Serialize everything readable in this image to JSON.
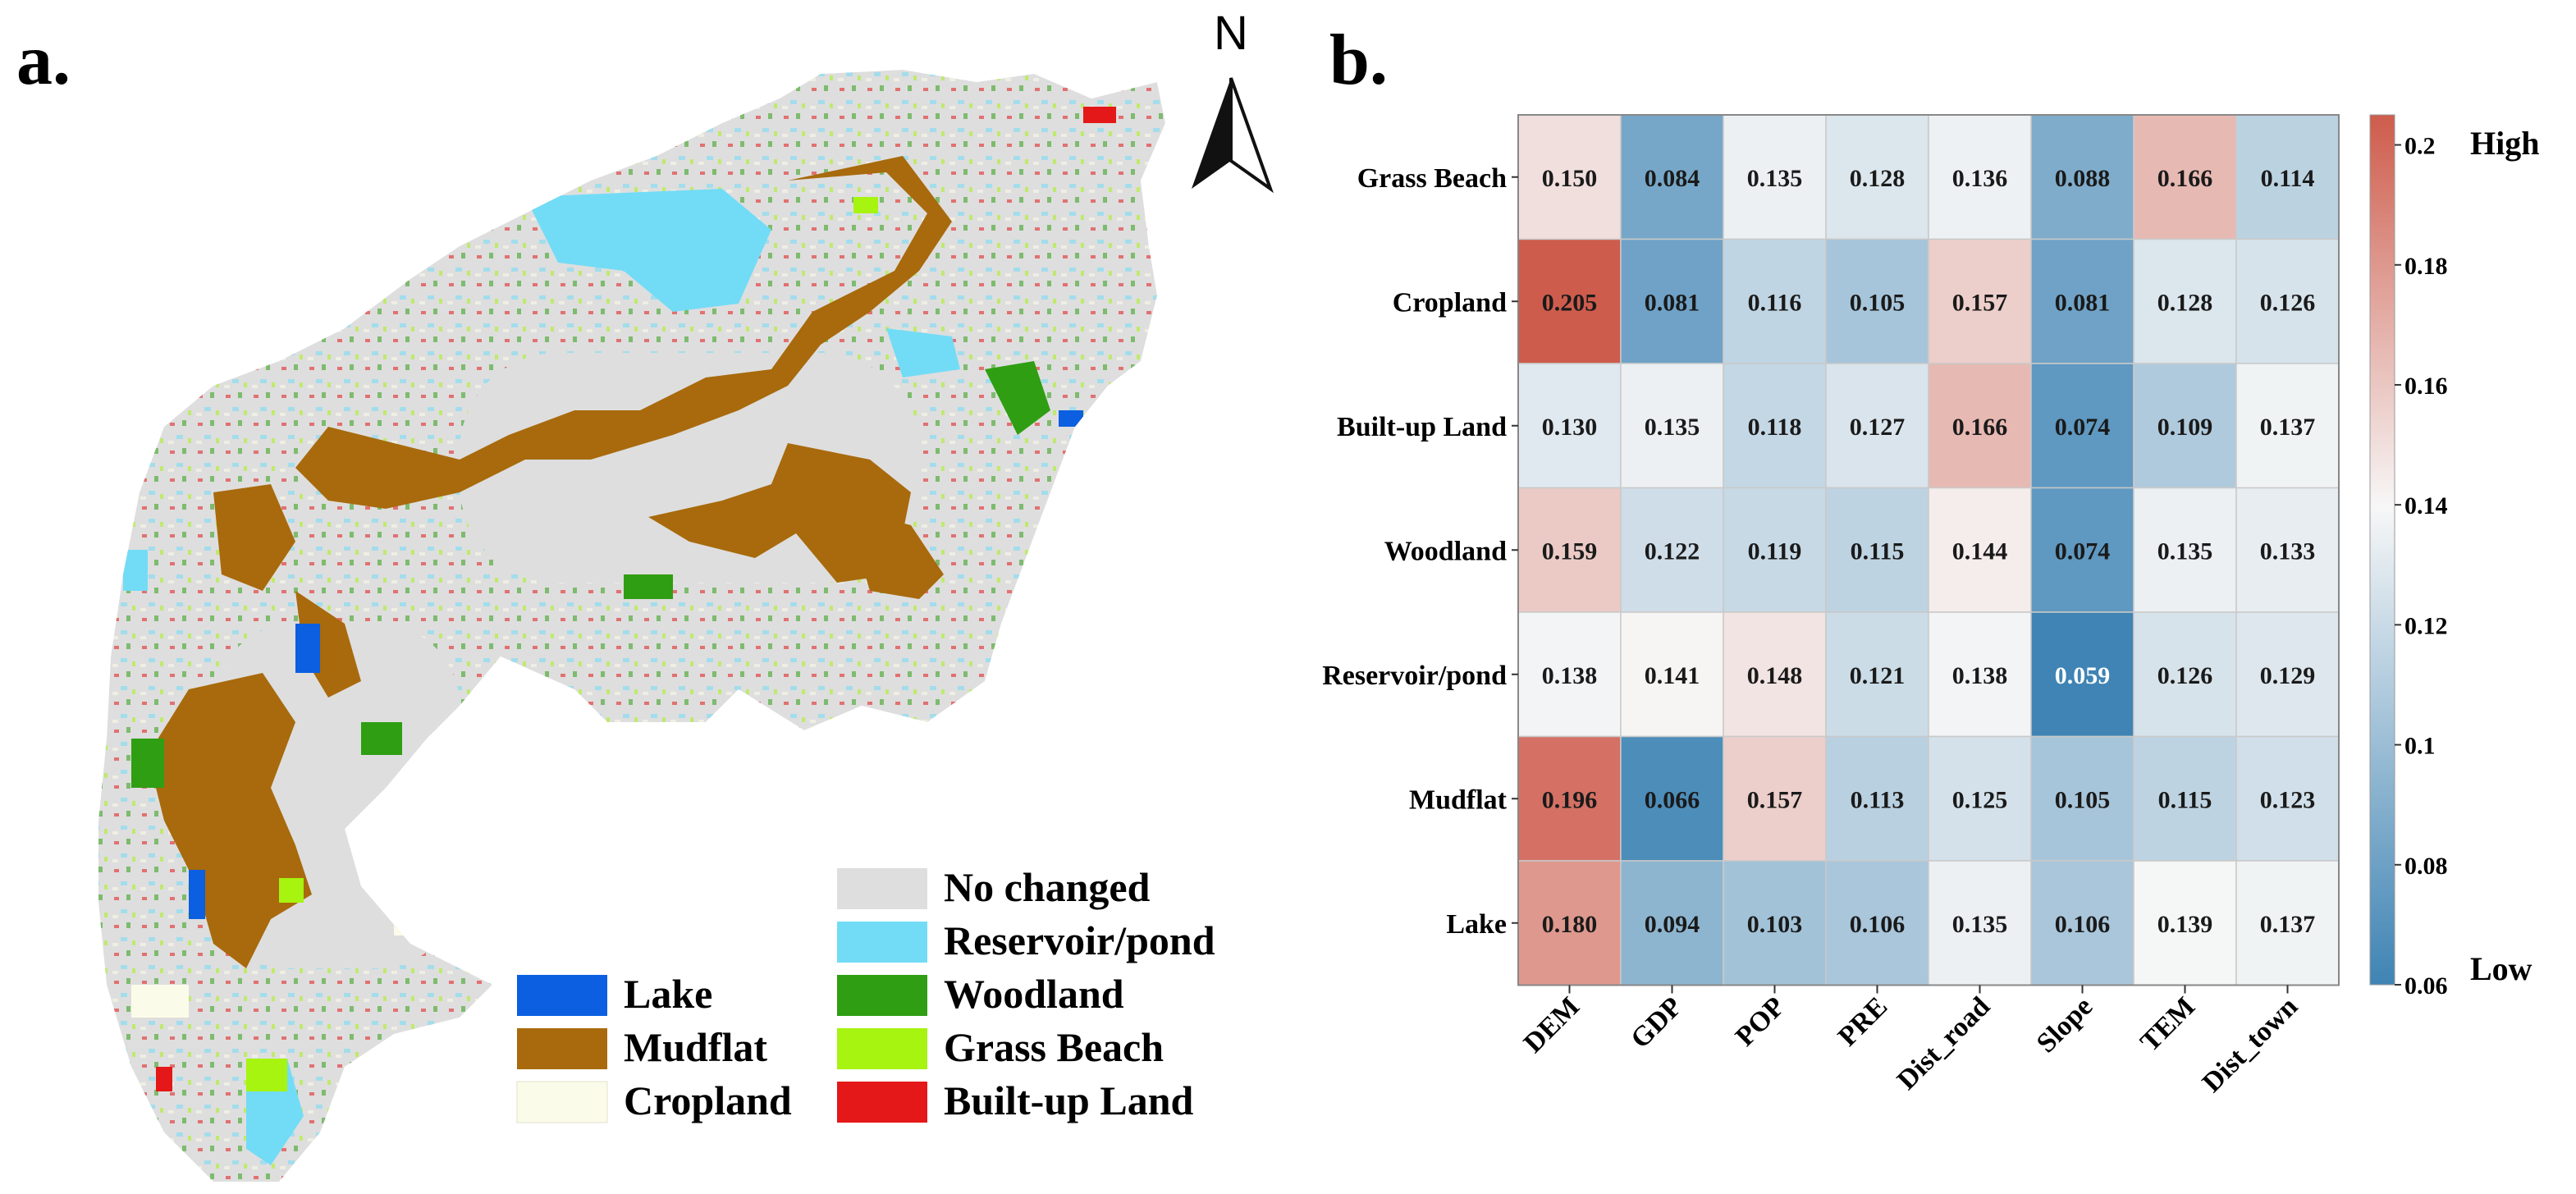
{
  "panel_a": {
    "label": "a.",
    "north_label": "N",
    "legend": [
      {
        "name": "Lake",
        "color": "#0b5fe0"
      },
      {
        "name": "Mudflat",
        "color": "#a86a0c"
      },
      {
        "name": "Cropland",
        "color": "#fbfbe9"
      },
      {
        "name": "No changed",
        "color": "#dedede"
      },
      {
        "name": "Reservoir/pond",
        "color": "#72dcf6"
      },
      {
        "name": "Woodland",
        "color": "#2f9e12"
      },
      {
        "name": "Grass Beach",
        "color": "#a6f410"
      },
      {
        "name": "Built-up Land",
        "color": "#e41818"
      }
    ]
  },
  "panel_b": {
    "label": "b."
  },
  "chart_data": {
    "type": "heatmap",
    "rows": [
      "Grass Beach",
      "Cropland",
      "Built-up Land",
      "Woodland",
      "Reservoir/pond",
      "Mudflat",
      "Lake"
    ],
    "columns": [
      "DEM",
      "GDP",
      "POP",
      "PRE",
      "Dist_road",
      "Slope",
      "TEM",
      "Dist_town"
    ],
    "values": [
      [
        0.15,
        0.084,
        0.135,
        0.128,
        0.136,
        0.088,
        0.166,
        0.114
      ],
      [
        0.205,
        0.081,
        0.116,
        0.105,
        0.157,
        0.081,
        0.128,
        0.126
      ],
      [
        0.13,
        0.135,
        0.118,
        0.127,
        0.166,
        0.074,
        0.109,
        0.137
      ],
      [
        0.159,
        0.122,
        0.119,
        0.115,
        0.144,
        0.074,
        0.135,
        0.133
      ],
      [
        0.138,
        0.141,
        0.148,
        0.121,
        0.138,
        0.059,
        0.126,
        0.129
      ],
      [
        0.196,
        0.066,
        0.157,
        0.113,
        0.125,
        0.105,
        0.115,
        0.123
      ],
      [
        0.18,
        0.094,
        0.103,
        0.106,
        0.135,
        0.106,
        0.139,
        0.137
      ]
    ],
    "value_labels": [
      [
        "0.150",
        "0.084",
        "0.135",
        "0.128",
        "0.136",
        "0.088",
        "0.166",
        "0.114"
      ],
      [
        "0.205",
        "0.081",
        "0.116",
        "0.105",
        "0.157",
        "0.081",
        "0.128",
        "0.126"
      ],
      [
        "0.130",
        "0.135",
        "0.118",
        "0.127",
        "0.166",
        "0.074",
        "0.109",
        "0.137"
      ],
      [
        "0.159",
        "0.122",
        "0.119",
        "0.115",
        "0.144",
        "0.074",
        "0.135",
        "0.133"
      ],
      [
        "0.138",
        "0.141",
        "0.148",
        "0.121",
        "0.138",
        "0.059",
        "0.126",
        "0.129"
      ],
      [
        "0.196",
        "0.066",
        "0.157",
        "0.113",
        "0.125",
        "0.105",
        "0.115",
        "0.123"
      ],
      [
        "0.180",
        "0.094",
        "0.103",
        "0.106",
        "0.135",
        "0.106",
        "0.139",
        "0.137"
      ]
    ],
    "colorbar": {
      "vmin": 0.06,
      "vmax": 0.205,
      "ticks": [
        0.06,
        0.08,
        0.1,
        0.12,
        0.14,
        0.16,
        0.18,
        0.2
      ],
      "tick_labels": [
        "0.06",
        "0.08",
        "0.1",
        "0.12",
        "0.14",
        "0.16",
        "0.18",
        "0.2"
      ],
      "high_label": "High",
      "low_label": "Low",
      "low_color": "#3f84b4",
      "mid_color": "#f7f7f7",
      "high_color": "#ce5c4c"
    }
  }
}
